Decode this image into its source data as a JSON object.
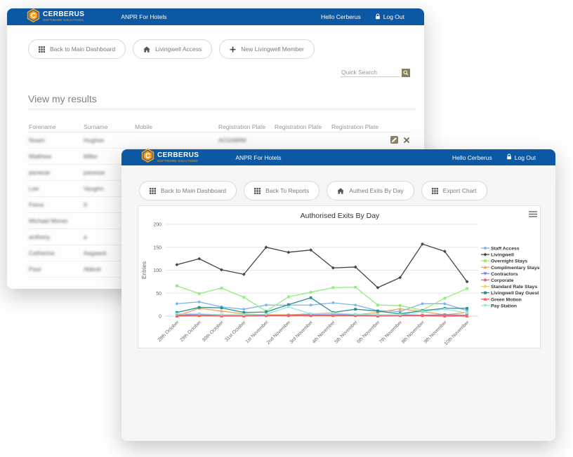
{
  "brand": {
    "name": "CERBERUS",
    "tagline": "SOFTWARE SOLUTIONS",
    "app_title": "ANPR For Hotels",
    "hello": "Hello Cerberus",
    "logout": "Log Out"
  },
  "back_window": {
    "buttons": [
      {
        "icon": "grid",
        "label": "Back to Main Dashboard"
      },
      {
        "icon": "home",
        "label": "Livingwell Access"
      },
      {
        "icon": "plus",
        "label": "New Livingwell Member"
      }
    ],
    "search_placeholder": "Quick Search",
    "section_title": "View my results",
    "table": {
      "headers": [
        "Forename",
        "Surname",
        "Mobile",
        "Registration Plate",
        "Registration Plate",
        "Registration Plate"
      ],
      "rows": [
        {
          "forename": "Noam",
          "surname": "Hughes",
          "mobile": "",
          "reg1": "AO106RM",
          "reg2": "",
          "reg3": "",
          "actions": true
        },
        {
          "forename": "Matthew",
          "surname": "Miller",
          "mobile": "",
          "reg1": "",
          "reg2": "",
          "reg3": "",
          "actions": false
        },
        {
          "forename": "panesar",
          "surname": "panesar",
          "mobile": "",
          "reg1": "",
          "reg2": "",
          "reg3": "",
          "actions": false
        },
        {
          "forename": "Lee",
          "surname": "Vaughn",
          "mobile": "",
          "reg1": "",
          "reg2": "",
          "reg3": "",
          "actions": false
        },
        {
          "forename": "Fiona",
          "surname": "0",
          "mobile": "",
          "reg1": "",
          "reg2": "",
          "reg3": "",
          "actions": false
        },
        {
          "forename": "Michael Moran",
          "surname": "",
          "mobile": "",
          "reg1": "",
          "reg2": "",
          "reg3": "",
          "actions": false
        },
        {
          "forename": "anthony",
          "surname": "a",
          "mobile": "",
          "reg1": "",
          "reg2": "",
          "reg3": "",
          "actions": false
        },
        {
          "forename": "Catherine",
          "surname": "Aagaard",
          "mobile": "",
          "reg1": "",
          "reg2": "",
          "reg3": "",
          "actions": false
        },
        {
          "forename": "Paul",
          "surname": "Abbott",
          "mobile": "",
          "reg1": "",
          "reg2": "",
          "reg3": "",
          "actions": false
        }
      ]
    }
  },
  "front_window": {
    "buttons": [
      {
        "icon": "grid",
        "label": "Back to Main Dashboard"
      },
      {
        "icon": "grid",
        "label": "Back To Reports"
      },
      {
        "icon": "home",
        "label": "Authed Exits By Day"
      },
      {
        "icon": "grid",
        "label": "Export Chart"
      }
    ]
  },
  "chart_data": {
    "type": "line",
    "title": "Authorised Exits By Day",
    "ylabel": "Entries",
    "ylim": [
      0,
      200
    ],
    "yticks": [
      0,
      50,
      100,
      150,
      200
    ],
    "grid": true,
    "legend_position": "right",
    "categories": [
      "28th October",
      "29th October",
      "30th October",
      "31st October",
      "1st November",
      "2nd November",
      "3rd November",
      "4th November",
      "5th November",
      "6th November",
      "7th November",
      "8th November",
      "9th November",
      "10th November"
    ],
    "series": [
      {
        "name": "Staff Access",
        "color": "#7cb5ec",
        "marker": "circle",
        "values": [
          27,
          31,
          20,
          15,
          24,
          24,
          24,
          29,
          24,
          12,
          10,
          27,
          27,
          12
        ]
      },
      {
        "name": "Livingwell",
        "color": "#434348",
        "marker": "diamond",
        "values": [
          112,
          125,
          101,
          91,
          150,
          139,
          144,
          105,
          107,
          62,
          84,
          157,
          141,
          75
        ]
      },
      {
        "name": "Overnight Stays",
        "color": "#90ed7d",
        "marker": "square",
        "values": [
          66,
          49,
          61,
          41,
          11,
          42,
          52,
          62,
          63,
          24,
          23,
          13,
          39,
          60
        ]
      },
      {
        "name": "Complimentary Stays",
        "color": "#f7a35c",
        "marker": "triangle",
        "values": [
          1,
          17,
          11,
          5,
          3,
          3,
          5,
          7,
          3,
          8,
          16,
          10,
          3,
          8
        ]
      },
      {
        "name": "Contractors",
        "color": "#8085e9",
        "marker": "triangle-down",
        "values": [
          2,
          4,
          2,
          2,
          2,
          2,
          3,
          3,
          4,
          2,
          3,
          2,
          3,
          2
        ]
      },
      {
        "name": "Corporate",
        "color": "#f15c80",
        "marker": "circle",
        "values": [
          1,
          2,
          1,
          1,
          2,
          1,
          2,
          2,
          2,
          1,
          2,
          2,
          1,
          1
        ]
      },
      {
        "name": "Standard Rate Stays",
        "color": "#e4d354",
        "marker": "diamond",
        "values": [
          0,
          1,
          0,
          0,
          1,
          1,
          1,
          1,
          1,
          0,
          1,
          1,
          0,
          0
        ]
      },
      {
        "name": "Livingwell Day Guest",
        "color": "#2b908f",
        "marker": "square",
        "values": [
          8,
          19,
          18,
          8,
          9,
          25,
          40,
          8,
          15,
          11,
          5,
          12,
          17,
          17
        ]
      },
      {
        "name": "Green Motion",
        "color": "#f45b5b",
        "marker": "triangle",
        "values": [
          0,
          1,
          0,
          0,
          1,
          1,
          1,
          1,
          1,
          0,
          1,
          1,
          0,
          0
        ]
      },
      {
        "name": "Pay Station",
        "color": "#91e8e1",
        "marker": "triangle-down",
        "values": [
          5,
          5,
          3,
          3,
          4,
          20,
          5,
          6,
          4,
          3,
          3,
          10,
          15,
          7
        ]
      }
    ]
  }
}
